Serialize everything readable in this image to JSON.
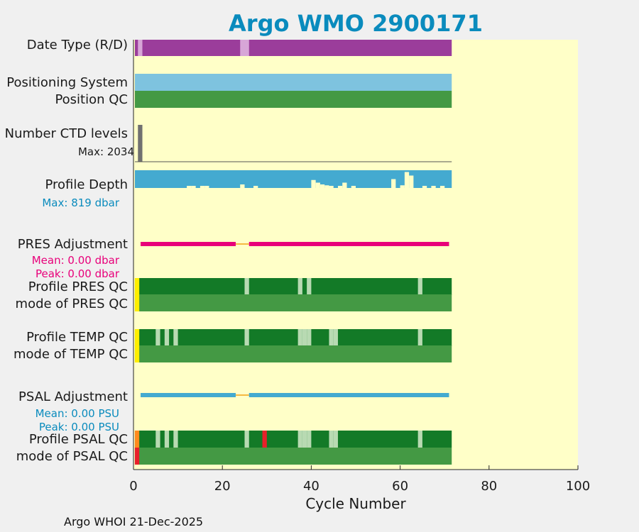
{
  "title": "Argo WMO 2900171",
  "footer": "Argo WHOI 21-Dec-2025",
  "colors": {
    "background": "#ffffc8",
    "date_type_delayed": "#9b3d9b",
    "date_type_realtime": "#d7a6d7",
    "positioning": "#7ec3df",
    "qc_good": "#449944",
    "qc_dark_good": "#137a27",
    "qc_light": "#b8dab2",
    "qc_yellow": "#ffee00",
    "qc_orange": "#ff8a1e",
    "qc_red": "#e8202a",
    "ctd_levels": "#707070",
    "depth": "#44aad0",
    "pres_adjust": "#e8007a",
    "adjust_gap": "#f5b942",
    "psal_adjust": "#44aad0",
    "title": "#0a8bbd"
  },
  "rows": {
    "date_type": "Date Type (R/D)",
    "positioning_system": "Positioning System",
    "position_qc": "Position QC",
    "number_ctd_levels": "Number CTD levels",
    "ctd_max": "Max: 2034",
    "profile_depth": "Profile Depth",
    "depth_max": "Max:  819 dbar",
    "pres_adjustment": "PRES Adjustment",
    "pres_mean": "Mean: 0.00 dbar",
    "pres_peak": "Peak: 0.00 dbar",
    "profile_pres_qc": "Profile PRES QC",
    "mode_pres_qc": "mode of PRES QC",
    "profile_temp_qc": "Profile TEMP QC",
    "mode_temp_qc": "mode of TEMP QC",
    "psal_adjustment": "PSAL Adjustment",
    "psal_mean": "Mean: 0.00 PSU",
    "psal_peak": "Peak: 0.00 PSU",
    "profile_psal_qc": "Profile PSAL QC",
    "mode_psal_qc": "mode of PSAL QC"
  },
  "chart_data": {
    "type": "bar",
    "xlabel": "Cycle Number",
    "xlim": [
      0,
      100
    ],
    "xticks": [
      0,
      20,
      40,
      60,
      80,
      100
    ],
    "n_cycles": 71,
    "date_type_realtime_cycles": [
      1,
      24,
      25
    ],
    "ctd_levels_cycle": 1,
    "profile_depth_gaps": [
      {
        "cycle": 12,
        "frac": 0.08
      },
      {
        "cycle": 13,
        "frac": 0.08
      },
      {
        "cycle": 15,
        "frac": 0.08
      },
      {
        "cycle": 16,
        "frac": 0.08
      },
      {
        "cycle": 24,
        "frac": 0.2
      },
      {
        "cycle": 27,
        "frac": 0.08
      },
      {
        "cycle": 40,
        "frac": 0.45
      },
      {
        "cycle": 41,
        "frac": 0.3
      },
      {
        "cycle": 42,
        "frac": 0.2
      },
      {
        "cycle": 43,
        "frac": 0.15
      },
      {
        "cycle": 44,
        "frac": 0.08
      },
      {
        "cycle": 46,
        "frac": 0.08
      },
      {
        "cycle": 47,
        "frac": 0.3
      },
      {
        "cycle": 49,
        "frac": 0.1
      },
      {
        "cycle": 58,
        "frac": 0.5
      },
      {
        "cycle": 60,
        "frac": 0.15
      },
      {
        "cycle": 61,
        "frac": 0.9
      },
      {
        "cycle": 62,
        "frac": 0.7
      },
      {
        "cycle": 65,
        "frac": 0.08
      },
      {
        "cycle": 67,
        "frac": 0.08
      },
      {
        "cycle": 69,
        "frac": 0.08
      }
    ],
    "pres_adjustment_gap": [
      23,
      26
    ],
    "psal_adjustment_gap": [
      23,
      26
    ],
    "pres_qc_light_cycles": [
      25,
      37,
      39,
      64
    ],
    "temp_qc_light_cycles": [
      5,
      7,
      9,
      25,
      37,
      38,
      39,
      44,
      45,
      64
    ],
    "psal_qc_light_cycles": [
      5,
      7,
      9,
      25,
      37,
      38,
      39,
      44,
      45,
      64
    ],
    "psal_qc_red_cycles": [
      29
    ]
  }
}
